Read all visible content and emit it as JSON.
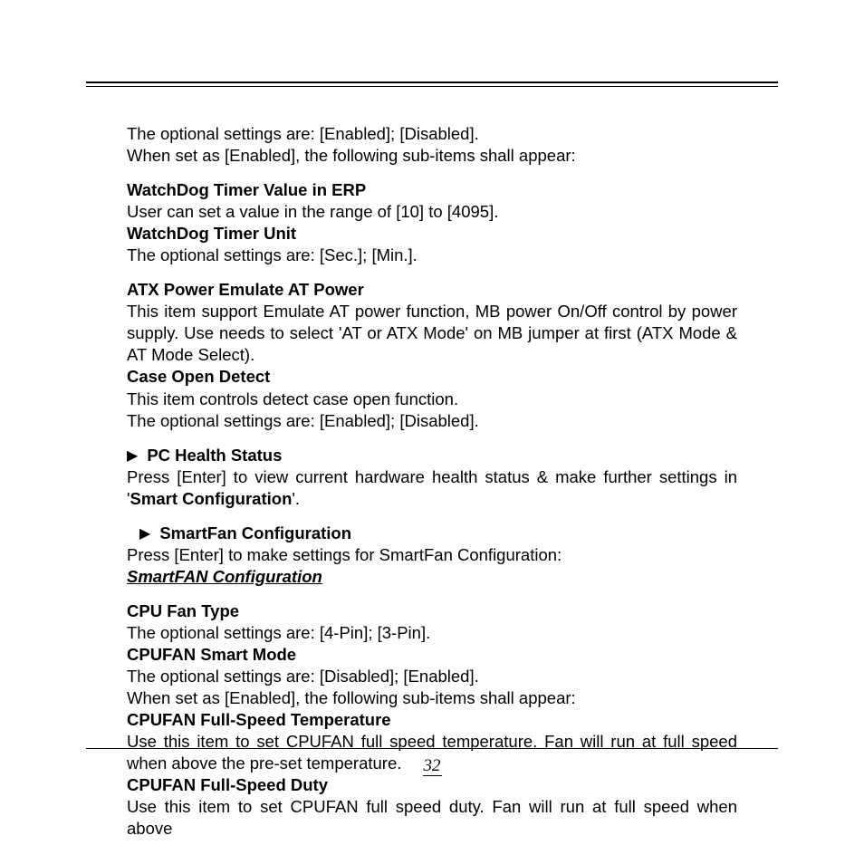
{
  "intro": {
    "line1": "The optional settings are: [Enabled]; [Disabled].",
    "line2": "When set as [Enabled], the following sub-items shall appear:"
  },
  "watchdog_value": {
    "title": "WatchDog Timer Value in ERP",
    "body": "User can set a value in the range of [10] to [4095]."
  },
  "watchdog_unit": {
    "title": "WatchDog Timer Unit",
    "body": "The optional settings are: [Sec.]; [Min.]."
  },
  "atx": {
    "title": "ATX Power Emulate AT Power",
    "body": "This item support Emulate AT power function, MB power On/Off control by power supply. Use needs to select 'AT or ATX Mode' on MB jumper at first (ATX Mode & AT Mode Select)."
  },
  "case_open": {
    "title": "Case Open Detect",
    "body1": "This item controls detect case open function.",
    "body2": "The optional settings are: [Enabled]; [Disabled]."
  },
  "pc_health": {
    "title": "PC Health Status",
    "body_pre": "Press [Enter] to view current hardware health status & make further settings in '",
    "body_bold": "Smart Configuration",
    "body_post": "'."
  },
  "smartfan": {
    "title": "SmartFan Configuration",
    "body": "Press [Enter] to make settings for SmartFan Configuration:",
    "subtitle": "SmartFAN Configuration"
  },
  "cpu_fan_type": {
    "title": "CPU Fan Type",
    "body": "The optional settings are: [4-Pin]; [3-Pin]."
  },
  "cpufan_smart": {
    "title": "CPUFAN Smart Mode",
    "body1": "The optional settings are: [Disabled]; [Enabled].",
    "body2": "When set as [Enabled], the following sub-items shall appear:"
  },
  "cpufan_temp": {
    "title": "CPUFAN Full-Speed Temperature",
    "body": "Use this item to set CPUFAN full speed temperature. Fan will run at full speed when above the pre-set temperature."
  },
  "cpufan_duty": {
    "title": "CPUFAN Full-Speed Duty",
    "body": "Use this item to set CPUFAN full speed duty. Fan will run at full speed when above"
  },
  "page_number": "32"
}
